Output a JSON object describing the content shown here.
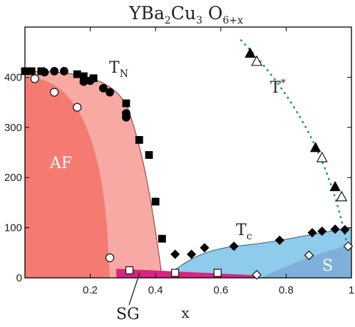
{
  "chart_data": {
    "type": "scatter",
    "title_parts": {
      "main": "YBa",
      "s1": "2",
      "mid": "Cu",
      "s2": "3",
      "o": " O",
      "s3": "6+x"
    },
    "xlabel": "x",
    "ylabel": "",
    "xlim": [
      0,
      1
    ],
    "ylim": [
      0,
      500
    ],
    "xticks": [
      "0.2",
      "0.4",
      "0.6",
      "0.8",
      "1"
    ],
    "xtick_values": [
      0.2,
      0.4,
      0.6,
      0.8,
      1.0
    ],
    "yticks": [
      "0",
      "100",
      "200",
      "300",
      "400"
    ],
    "ytick_values": [
      0,
      100,
      200,
      300,
      400
    ],
    "region_labels": {
      "af": "AF",
      "sg": "SG",
      "s": "S",
      "tn_main": "T",
      "tn_sub": "N",
      "tstar_main": "T",
      "tstar_sup": "*",
      "tc_main": "T",
      "tc_sub": "c"
    },
    "colors": {
      "af_region": "#f47a72",
      "tn_region": "#f8a9a3",
      "sg_region": "#d6267f",
      "tc_region": "#8fcbea",
      "s_region": "#7fb0dc",
      "tstar_line": "#1f9a6a"
    },
    "series": [
      {
        "marker": "filled-square",
        "points": [
          [
            0.0,
            412
          ],
          [
            0.02,
            412
          ],
          [
            0.05,
            412
          ],
          [
            0.16,
            406
          ],
          [
            0.18,
            402
          ],
          [
            0.21,
            398
          ],
          [
            0.31,
            348
          ],
          [
            0.31,
            325
          ],
          [
            0.35,
            275
          ],
          [
            0.38,
            245
          ],
          [
            0.4,
            152
          ],
          [
            0.42,
            78
          ]
        ]
      },
      {
        "marker": "filled-circle",
        "points": [
          [
            0.06,
            410
          ],
          [
            0.09,
            412
          ],
          [
            0.12,
            412
          ],
          [
            0.18,
            391
          ],
          [
            0.2,
            393
          ],
          [
            0.24,
            378
          ],
          [
            0.26,
            370
          ],
          [
            0.31,
            328
          ],
          [
            0.31,
            320
          ]
        ]
      },
      {
        "marker": "open-circle",
        "points": [
          [
            0.03,
            397
          ],
          [
            0.09,
            370
          ],
          [
            0.16,
            340
          ],
          [
            0.26,
            40
          ]
        ]
      },
      {
        "marker": "open-square",
        "points": [
          [
            0.32,
            15
          ],
          [
            0.46,
            10
          ],
          [
            0.59,
            10
          ]
        ]
      },
      {
        "marker": "filled-diamond",
        "points": [
          [
            0.46,
            47
          ],
          [
            0.51,
            47
          ],
          [
            0.55,
            60
          ],
          [
            0.64,
            63
          ],
          [
            0.78,
            75
          ],
          [
            0.88,
            90
          ],
          [
            0.91,
            93
          ],
          [
            0.95,
            97
          ],
          [
            0.98,
            96
          ]
        ]
      },
      {
        "marker": "open-diamond",
        "points": [
          [
            0.71,
            6
          ],
          [
            0.87,
            45
          ],
          [
            0.99,
            63
          ]
        ]
      },
      {
        "marker": "filled-triangle",
        "points": [
          [
            0.69,
            448
          ],
          [
            0.89,
            260
          ],
          [
            0.95,
            182
          ]
        ]
      },
      {
        "marker": "open-triangle",
        "points": [
          [
            0.71,
            432
          ],
          [
            0.91,
            240
          ],
          [
            0.97,
            162
          ]
        ]
      }
    ]
  }
}
